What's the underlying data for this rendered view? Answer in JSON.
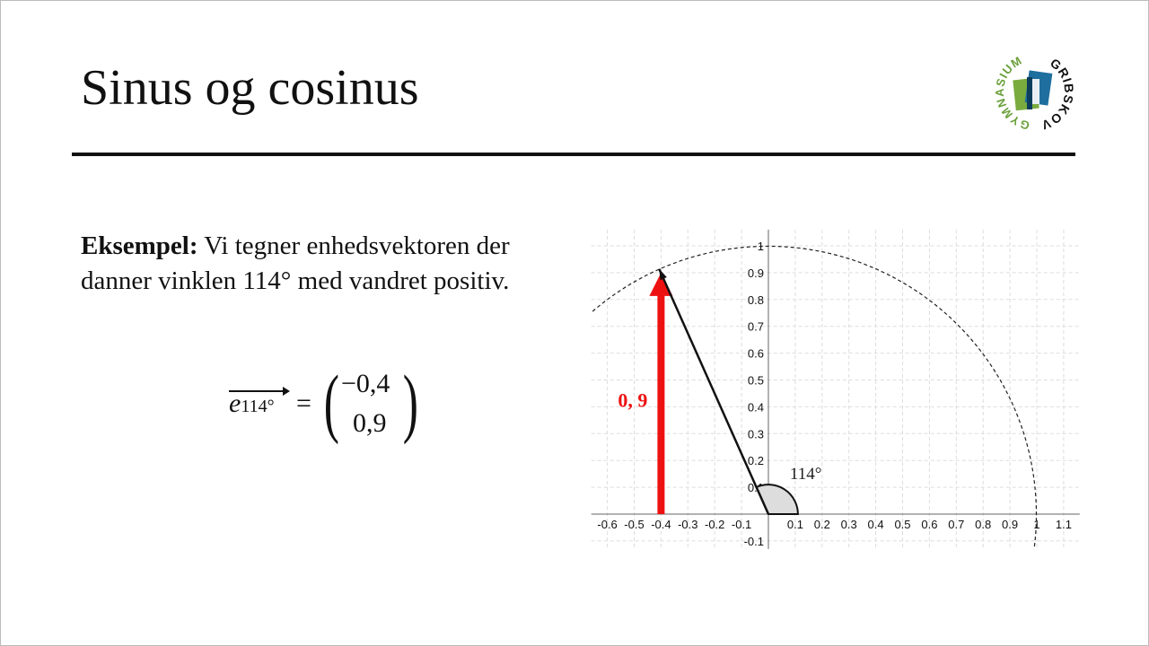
{
  "slide": {
    "title": "Sinus og cosinus",
    "logo_text": "GRIBSKOV GYMNASIUM",
    "example_label": "Eksempel:",
    "example_text": " Vi tegner enhedsvektoren der danner vinklen 114° med vandret positiv.",
    "equation": {
      "vector_name": "e",
      "vector_subscript": "114°",
      "equals": "=",
      "component_x": "−0,4",
      "component_y": "0,9"
    }
  },
  "chart_data": {
    "type": "diagram",
    "xlim": [
      -0.66,
      1.16
    ],
    "ylim": [
      -0.13,
      1.06
    ],
    "grid": true,
    "x_ticks": [
      "-0.6",
      "-0.5",
      "-0.4",
      "-0.3",
      "-0.2",
      "-0.1",
      "0.1",
      "0.2",
      "0.3",
      "0.4",
      "0.5",
      "0.6",
      "0.7",
      "0.8",
      "0.9",
      "1",
      "1.1"
    ],
    "y_ticks": [
      "-0.1",
      "0.1",
      "0.2",
      "0.3",
      "0.4",
      "0.5",
      "0.6",
      "0.7",
      "0.8",
      "0.9",
      "1"
    ],
    "unit_circle": {
      "radius": 1,
      "style": "dashed"
    },
    "vector": {
      "angle_deg": 114,
      "end": [
        -0.407,
        0.914
      ]
    },
    "angle_label": "114°",
    "component_arrow": {
      "x": -0.4,
      "from": 0,
      "to": 0.9,
      "label": "0, 9",
      "color": "#ee1111"
    }
  }
}
